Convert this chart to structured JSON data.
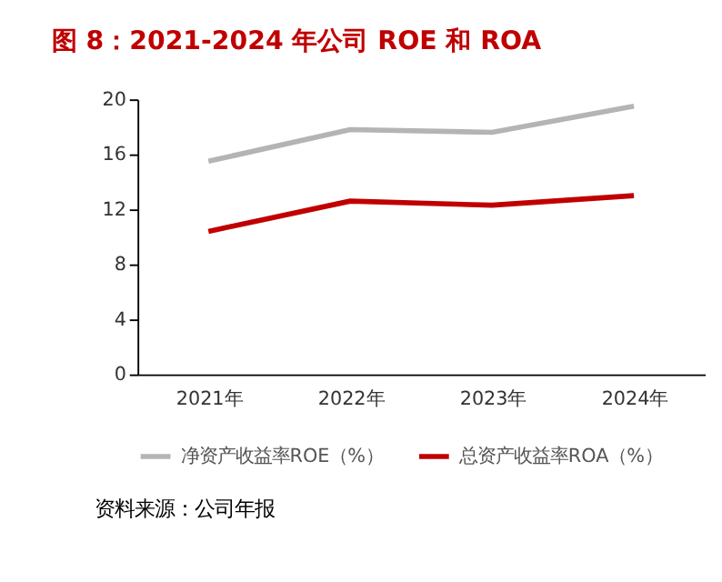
{
  "chart_data": {
    "type": "line",
    "title": "图 8：2021-2024 年公司 ROE 和 ROA",
    "categories": [
      "2021年",
      "2022年",
      "2023年",
      "2024年"
    ],
    "series": [
      {
        "name": "净资产收益率ROE（%）",
        "color": "#b4b4b4",
        "values": [
          15.5,
          17.8,
          17.6,
          19.5
        ]
      },
      {
        "name": "总资产收益率ROA（%）",
        "color": "#c00000",
        "values": [
          10.4,
          12.6,
          12.3,
          13.0
        ]
      }
    ],
    "ylim": [
      0,
      20
    ],
    "yticks": [
      0,
      4,
      8,
      12,
      16,
      20
    ],
    "grid": false,
    "legend": "bottom",
    "marker": "none",
    "line_style": "solid",
    "annotations": [
      "资料来源：公司年报"
    ]
  }
}
